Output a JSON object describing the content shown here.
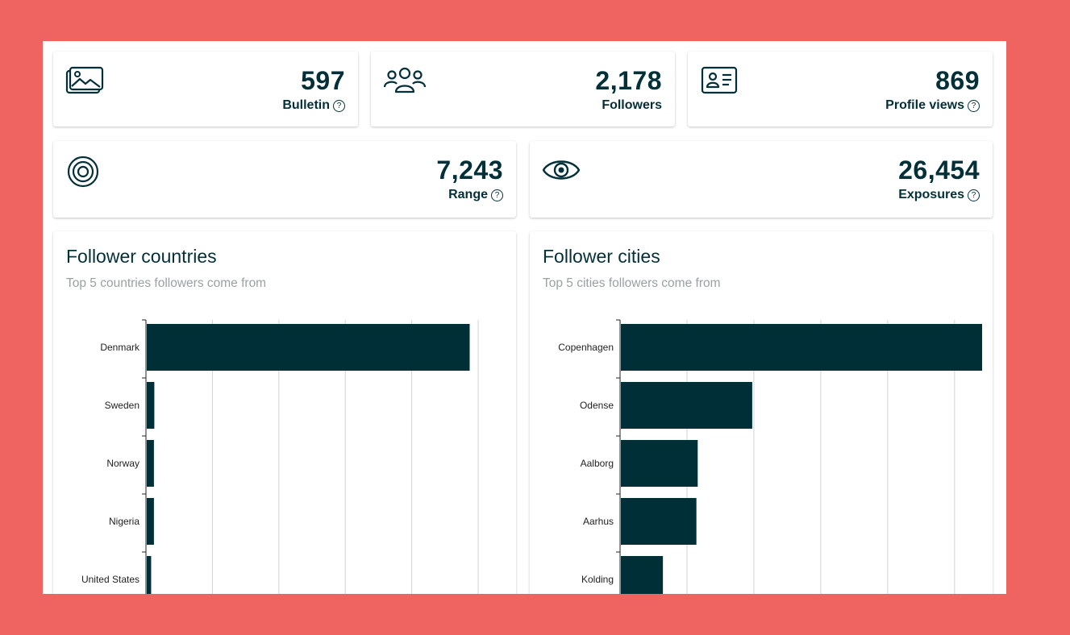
{
  "stats": [
    {
      "id": "bulletin",
      "icon": "image-gallery-icon",
      "value": "597",
      "label": "Bulletin",
      "help": "?"
    },
    {
      "id": "followers",
      "icon": "users-group-icon",
      "value": "2,178",
      "label": "Followers",
      "help": null
    },
    {
      "id": "profile_views",
      "icon": "id-card-icon",
      "value": "869",
      "label": "Profile views",
      "help": "?"
    },
    {
      "id": "range",
      "icon": "target-icon",
      "value": "7,243",
      "label": "Range",
      "help": "?"
    },
    {
      "id": "exposures",
      "icon": "eye-icon",
      "value": "26,454",
      "label": "Exposures",
      "help": "?"
    }
  ],
  "countries": {
    "title": "Follower countries",
    "subtitle": "Top 5 countries followers come from"
  },
  "cities": {
    "title": "Follower cities",
    "subtitle": "Top 5 cities followers come from"
  },
  "colors": {
    "bar": "#012f37",
    "text": "#033038",
    "background": "#ef6461"
  },
  "chart_data": [
    {
      "type": "bar",
      "orientation": "horizontal",
      "title": "Follower countries",
      "subtitle": "Top 5 countries followers come from",
      "categories": [
        "Denmark",
        "Sweden",
        "Norway",
        "Nigeria",
        "United States"
      ],
      "values": [
        1620,
        38,
        36,
        36,
        22
      ],
      "xlim": [
        0,
        1800
      ],
      "grid": true
    },
    {
      "type": "bar",
      "orientation": "horizontal",
      "title": "Follower cities",
      "subtitle": "Top 5 cities followers come from",
      "categories": [
        "Copenhagen",
        "Odense",
        "Aalborg",
        "Aarhus",
        "Kolding"
      ],
      "values": [
        550,
        200,
        117,
        115,
        64
      ],
      "xlim": [
        0,
        550
      ],
      "grid": true
    }
  ]
}
